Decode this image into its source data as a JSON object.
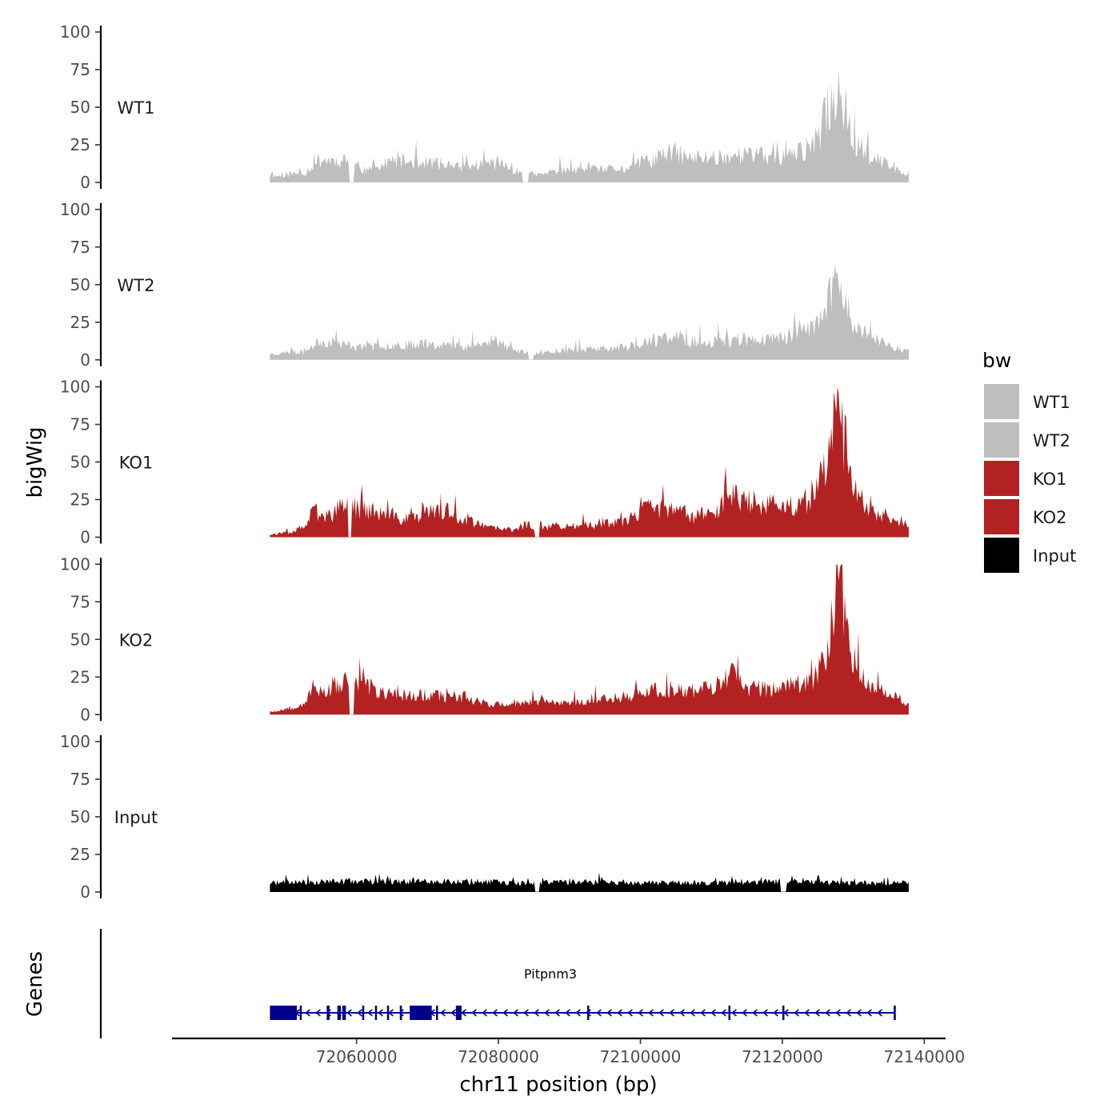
{
  "chart_data": {
    "type": "area",
    "ylabel": "bigWig",
    "xlabel": "chr11 position (bp)",
    "genes_label": "Genes",
    "ylim": [
      0,
      100
    ],
    "yticks": [
      "100",
      "75",
      "50",
      "25",
      "0"
    ],
    "xlim": [
      72034000,
      72143000
    ],
    "xticks": [
      {
        "value": 72060000,
        "label": "72060000"
      },
      {
        "value": 72080000,
        "label": "72080000"
      },
      {
        "value": 72100000,
        "label": "72100000"
      },
      {
        "value": 72120000,
        "label": "72120000"
      },
      {
        "value": 72140000,
        "label": "72140000"
      }
    ],
    "x_start": 72047800,
    "x_end": 72137800,
    "colors": {
      "WT1": "#bebebe",
      "WT2": "#bebebe",
      "KO1": "#b22222",
      "KO2": "#b22222",
      "Input": "#000000"
    },
    "series": [
      {
        "name": "WT1",
        "color": "#bebebe",
        "seed": 11,
        "anchors": [
          [
            0,
            4
          ],
          [
            5,
            6
          ],
          [
            8,
            15
          ],
          [
            12,
            14
          ],
          [
            15,
            8
          ],
          [
            20,
            14
          ],
          [
            25,
            13
          ],
          [
            30,
            10
          ],
          [
            35,
            13
          ],
          [
            40,
            6
          ],
          [
            42,
            5
          ],
          [
            45,
            8
          ],
          [
            50,
            8
          ],
          [
            55,
            9
          ],
          [
            60,
            15
          ],
          [
            63,
            20
          ],
          [
            66,
            16
          ],
          [
            70,
            17
          ],
          [
            75,
            18
          ],
          [
            80,
            17
          ],
          [
            83,
            20
          ],
          [
            85,
            25
          ],
          [
            88,
            52
          ],
          [
            89,
            66
          ],
          [
            90,
            48
          ],
          [
            92,
            25
          ],
          [
            95,
            15
          ],
          [
            98,
            9
          ],
          [
            100,
            6
          ]
        ],
        "noise": 0.55,
        "zeroGaps": [
          [
            39.5,
            40.5
          ],
          [
            12.5,
            13.2
          ]
        ]
      },
      {
        "name": "WT2",
        "color": "#bebebe",
        "seed": 23,
        "anchors": [
          [
            0,
            4
          ],
          [
            5,
            5
          ],
          [
            8,
            12
          ],
          [
            12,
            10
          ],
          [
            15,
            8
          ],
          [
            20,
            10
          ],
          [
            25,
            11
          ],
          [
            30,
            9
          ],
          [
            35,
            11
          ],
          [
            40,
            5
          ],
          [
            42,
            4
          ],
          [
            45,
            6
          ],
          [
            50,
            7
          ],
          [
            55,
            8
          ],
          [
            60,
            12
          ],
          [
            63,
            16
          ],
          [
            66,
            12
          ],
          [
            70,
            12
          ],
          [
            75,
            13
          ],
          [
            80,
            15
          ],
          [
            83,
            18
          ],
          [
            85,
            22
          ],
          [
            88,
            42
          ],
          [
            89,
            58
          ],
          [
            90,
            40
          ],
          [
            92,
            20
          ],
          [
            95,
            12
          ],
          [
            98,
            8
          ],
          [
            100,
            6
          ]
        ],
        "noise": 0.5,
        "zeroGaps": [
          [
            40.5,
            41.3
          ]
        ]
      },
      {
        "name": "KO1",
        "color": "#b22222",
        "seed": 37,
        "anchors": [
          [
            0,
            2
          ],
          [
            3,
            3
          ],
          [
            5,
            6
          ],
          [
            7,
            16
          ],
          [
            9,
            14
          ],
          [
            12,
            22
          ],
          [
            15,
            18
          ],
          [
            18,
            15
          ],
          [
            20,
            12
          ],
          [
            25,
            16
          ],
          [
            28,
            17
          ],
          [
            30,
            12
          ],
          [
            35,
            6
          ],
          [
            38,
            5
          ],
          [
            40,
            8
          ],
          [
            45,
            7
          ],
          [
            50,
            8
          ],
          [
            55,
            10
          ],
          [
            60,
            20
          ],
          [
            63,
            17
          ],
          [
            66,
            14
          ],
          [
            70,
            18
          ],
          [
            72,
            28
          ],
          [
            75,
            24
          ],
          [
            80,
            20
          ],
          [
            83,
            22
          ],
          [
            85,
            26
          ],
          [
            87,
            45
          ],
          [
            88,
            70
          ],
          [
            89,
            90
          ],
          [
            90,
            62
          ],
          [
            91,
            35
          ],
          [
            93,
            22
          ],
          [
            95,
            15
          ],
          [
            98,
            12
          ],
          [
            100,
            6
          ]
        ],
        "noise": 0.55,
        "zeroGaps": [
          [
            41.5,
            42.2
          ],
          [
            12.3,
            12.8
          ]
        ]
      },
      {
        "name": "KO2",
        "color": "#b22222",
        "seed": 53,
        "anchors": [
          [
            0,
            2
          ],
          [
            3,
            4
          ],
          [
            5,
            7
          ],
          [
            7,
            18
          ],
          [
            9,
            15
          ],
          [
            12,
            22
          ],
          [
            15,
            18
          ],
          [
            18,
            14
          ],
          [
            20,
            13
          ],
          [
            25,
            13
          ],
          [
            28,
            12
          ],
          [
            30,
            12
          ],
          [
            35,
            7
          ],
          [
            38,
            6
          ],
          [
            40,
            8
          ],
          [
            45,
            8
          ],
          [
            50,
            9
          ],
          [
            55,
            12
          ],
          [
            60,
            16
          ],
          [
            63,
            16
          ],
          [
            66,
            15
          ],
          [
            70,
            20
          ],
          [
            72,
            26
          ],
          [
            75,
            18
          ],
          [
            80,
            17
          ],
          [
            83,
            22
          ],
          [
            85,
            24
          ],
          [
            87,
            40
          ],
          [
            88,
            60
          ],
          [
            89,
            98
          ],
          [
            90,
            70
          ],
          [
            91,
            40
          ],
          [
            93,
            24
          ],
          [
            95,
            17
          ],
          [
            98,
            12
          ],
          [
            100,
            6
          ]
        ],
        "noise": 0.5,
        "zeroGaps": [
          [
            12.5,
            13.2
          ]
        ]
      },
      {
        "name": "Input",
        "color": "#000000",
        "seed": 71,
        "anchors": [
          [
            0,
            6
          ],
          [
            10,
            7
          ],
          [
            20,
            7
          ],
          [
            30,
            7
          ],
          [
            40,
            6
          ],
          [
            50,
            7
          ],
          [
            60,
            6
          ],
          [
            70,
            6
          ],
          [
            80,
            7
          ],
          [
            90,
            6
          ],
          [
            100,
            6
          ]
        ],
        "noise": 0.45,
        "zeroGaps": [
          [
            80,
            80.8
          ],
          [
            41.5,
            42.2
          ]
        ]
      }
    ],
    "legend": {
      "title": "bw",
      "entries": [
        {
          "label": "WT1",
          "color": "#bebebe"
        },
        {
          "label": "WT2",
          "color": "#bebebe"
        },
        {
          "label": "KO1",
          "color": "#b22222"
        },
        {
          "label": "KO2",
          "color": "#b22222"
        },
        {
          "label": "Input",
          "color": "#000000"
        }
      ]
    },
    "gene": {
      "name": "Pitpnm3",
      "color": "#00008b",
      "strand": "-",
      "start": 72047800,
      "end": 72135800,
      "exons": [
        [
          72047800,
          72051600
        ],
        [
          72052000,
          72052200
        ],
        [
          72055800,
          72056200
        ],
        [
          72057300,
          72057800
        ],
        [
          72058000,
          72058500
        ],
        [
          72060800,
          72061000
        ],
        [
          72062600,
          72062800
        ],
        [
          72064300,
          72064500
        ],
        [
          72066100,
          72066400
        ],
        [
          72067500,
          72070600
        ],
        [
          72071200,
          72071400
        ],
        [
          72074000,
          72074800
        ],
        [
          72092500,
          72092600
        ],
        [
          72112400,
          72112500
        ],
        [
          72120000,
          72120100
        ],
        [
          72135700,
          72135800
        ]
      ]
    }
  }
}
